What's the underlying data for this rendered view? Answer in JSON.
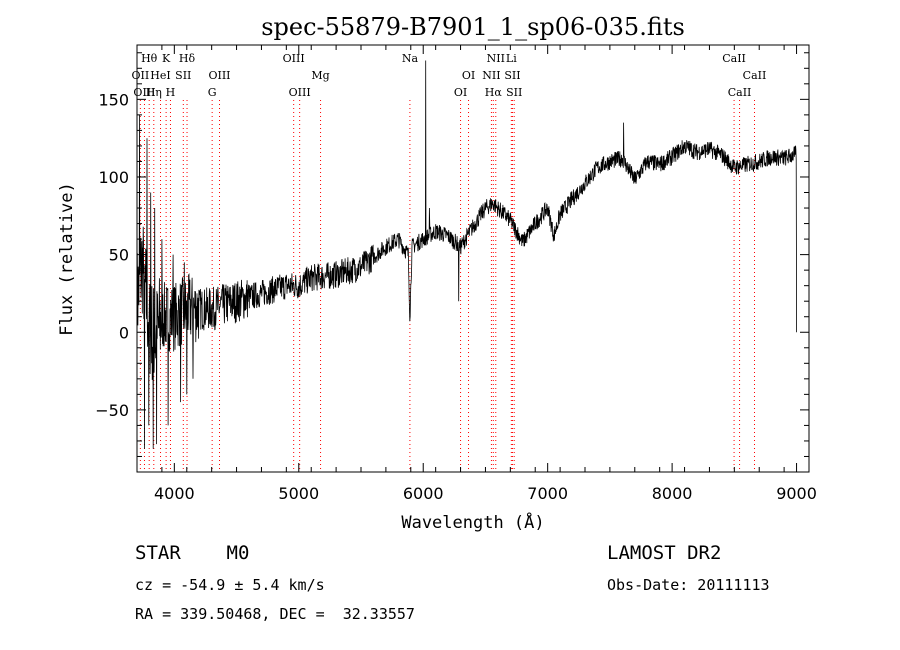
{
  "title": "spec-55879-B7901_1_sp06-035.fits",
  "footer": {
    "class_text": "STAR    M0",
    "survey": "LAMOST DR2",
    "cz": "cz = -54.9 ± 5.4 km/s",
    "obs_date": "Obs-Date: 20111113",
    "coords": "RA = 339.50468, DEC =  32.33557"
  },
  "chart_data": {
    "type": "line",
    "title": "spec-55879-B7901_1_sp06-035.fits",
    "xlabel": "Wavelength (Å)",
    "ylabel": "Flux (relative)",
    "xlim": [
      3700,
      9100
    ],
    "ylim": [
      -90,
      185
    ],
    "xticks": [
      4000,
      5000,
      6000,
      7000,
      8000,
      9000
    ],
    "yticks": [
      -50,
      0,
      50,
      100,
      150
    ],
    "grid": false,
    "line_color": "#000000",
    "marker_color": "#ff0000",
    "spectral_lines": [
      {
        "label": "Hθ",
        "wavelength": 3798,
        "row": 1
      },
      {
        "label": "OII",
        "wavelength": 3727,
        "row": 2
      },
      {
        "label": "OIII",
        "wavelength": 3760,
        "row": 3
      },
      {
        "label": "Hη",
        "wavelength": 3835,
        "row": 3
      },
      {
        "label": "K",
        "wavelength": 3934,
        "row": 1
      },
      {
        "label": "Hδ",
        "wavelength": 4102,
        "row": 1
      },
      {
        "label": "HeI",
        "wavelength": 3889,
        "row": 2
      },
      {
        "label": "SII",
        "wavelength": 4072,
        "row": 2
      },
      {
        "label": "H",
        "wavelength": 3969,
        "row": 3
      },
      {
        "label": "OIII",
        "wavelength": 4363,
        "row": 2
      },
      {
        "label": "G",
        "wavelength": 4304,
        "row": 3
      },
      {
        "label": "OIII",
        "wavelength": 4959,
        "row": 1
      },
      {
        "label": "Mg",
        "wavelength": 5175,
        "row": 2
      },
      {
        "label": "OIII",
        "wavelength": 5007,
        "row": 3
      },
      {
        "label": "Na",
        "wavelength": 5893,
        "row": 1
      },
      {
        "label": "OI",
        "wavelength": 6364,
        "row": 2
      },
      {
        "label": "OI",
        "wavelength": 6300,
        "row": 3
      },
      {
        "label": "NII",
        "wavelength": 6583,
        "row": 1
      },
      {
        "label": "Li",
        "wavelength": 6708,
        "row": 1
      },
      {
        "label": "NII",
        "wavelength": 6548,
        "row": 2
      },
      {
        "label": "SII",
        "wavelength": 6717,
        "row": 2
      },
      {
        "label": "Hα",
        "wavelength": 6563,
        "row": 3
      },
      {
        "label": "SII",
        "wavelength": 6731,
        "row": 3
      },
      {
        "label": "CaII",
        "wavelength": 8498,
        "row": 1
      },
      {
        "label": "CaII",
        "wavelength": 8662,
        "row": 2
      },
      {
        "label": "CaII",
        "wavelength": 8542,
        "row": 3
      }
    ],
    "series": [
      {
        "anchors": [
          [
            3700,
            20
          ],
          [
            3740,
            45
          ],
          [
            3800,
            5
          ],
          [
            3850,
            -5
          ],
          [
            3900,
            10
          ],
          [
            4000,
            10
          ],
          [
            4100,
            15
          ],
          [
            4300,
            15
          ],
          [
            4500,
            20
          ],
          [
            4700,
            25
          ],
          [
            4900,
            30
          ],
          [
            5000,
            30
          ],
          [
            5100,
            35
          ],
          [
            5300,
            37
          ],
          [
            5500,
            42
          ],
          [
            5700,
            55
          ],
          [
            5800,
            60
          ],
          [
            5880,
            50
          ],
          [
            5893,
            10
          ],
          [
            5910,
            55
          ],
          [
            6000,
            60
          ],
          [
            6100,
            65
          ],
          [
            6200,
            62
          ],
          [
            6300,
            55
          ],
          [
            6400,
            68
          ],
          [
            6500,
            80
          ],
          [
            6560,
            83
          ],
          [
            6700,
            72
          ],
          [
            6800,
            58
          ],
          [
            6900,
            70
          ],
          [
            7000,
            80
          ],
          [
            7050,
            62
          ],
          [
            7100,
            76
          ],
          [
            7200,
            86
          ],
          [
            7300,
            96
          ],
          [
            7400,
            106
          ],
          [
            7500,
            110
          ],
          [
            7600,
            112
          ],
          [
            7700,
            98
          ],
          [
            7800,
            110
          ],
          [
            7900,
            108
          ],
          [
            8000,
            113
          ],
          [
            8100,
            120
          ],
          [
            8200,
            116
          ],
          [
            8300,
            118
          ],
          [
            8400,
            114
          ],
          [
            8500,
            106
          ],
          [
            8600,
            108
          ],
          [
            8700,
            110
          ],
          [
            8800,
            113
          ],
          [
            8900,
            112
          ],
          [
            9000,
            115
          ]
        ],
        "spikes": [
          [
            3720,
            140
          ],
          [
            3760,
            -75
          ],
          [
            3780,
            125
          ],
          [
            3795,
            -60
          ],
          [
            3810,
            90
          ],
          [
            3830,
            -75
          ],
          [
            3842,
            80
          ],
          [
            3858,
            -72
          ],
          [
            3900,
            60
          ],
          [
            3950,
            -60
          ],
          [
            3990,
            50
          ],
          [
            4050,
            -45
          ],
          [
            4080,
            45
          ],
          [
            4100,
            -40
          ],
          [
            4150,
            -30
          ],
          [
            6020,
            175
          ],
          [
            6050,
            80
          ],
          [
            6285,
            20
          ],
          [
            7610,
            135
          ],
          [
            9000,
            0
          ]
        ]
      }
    ]
  }
}
